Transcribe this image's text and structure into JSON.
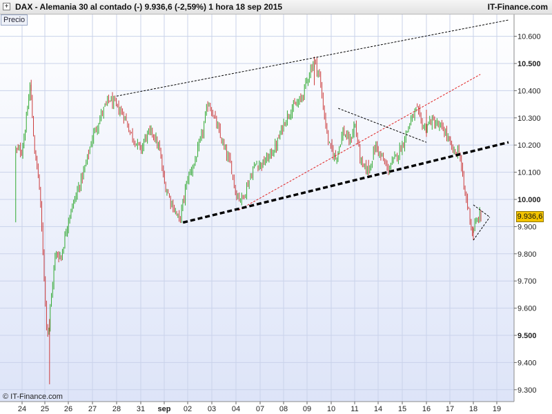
{
  "header": {
    "expand_symbol": "+",
    "title": "DAX - Alemania 30 al contado (-)     9.936,6  (-2,59%)     1 hora   18 sep 2015",
    "brand": "IT-Finance.com"
  },
  "panel_label": "Precio",
  "copyright": "© IT-Finance.com",
  "last_price_label": "9.936,6",
  "colors": {
    "up_bar": "#2fa82f",
    "down_bar": "#cc3b3b",
    "background_top": "#ffffff",
    "background_bottom": "#dde4f8",
    "grid": "#c9d2ea",
    "trendline_black": "#000000",
    "trendline_red": "#e02020",
    "last_price_box": "#f3c400"
  },
  "chart_data": {
    "type": "ohlc",
    "title": "DAX - Alemania 30 al contado (-)",
    "timeframe": "1 hora",
    "date": "18 sep 2015",
    "last_price": 9936.6,
    "change_pct": -2.59,
    "ylim": [
      9270,
      10670
    ],
    "y_ticks": [
      {
        "value": 9300,
        "label": "9.300",
        "bold": false
      },
      {
        "value": 9400,
        "label": "9.400",
        "bold": false
      },
      {
        "value": 9500,
        "label": "9.500",
        "bold": true
      },
      {
        "value": 9600,
        "label": "9.600",
        "bold": false
      },
      {
        "value": 9700,
        "label": "9.700",
        "bold": false
      },
      {
        "value": 9800,
        "label": "9.800",
        "bold": false
      },
      {
        "value": 9900,
        "label": "9.900",
        "bold": false
      },
      {
        "value": 10000,
        "label": "10.000",
        "bold": true
      },
      {
        "value": 10100,
        "label": "10.100",
        "bold": false
      },
      {
        "value": 10200,
        "label": "10.200",
        "bold": false
      },
      {
        "value": 10300,
        "label": "10.300",
        "bold": false
      },
      {
        "value": 10400,
        "label": "10.400",
        "bold": false
      },
      {
        "value": 10500,
        "label": "10.500",
        "bold": true
      },
      {
        "value": 10600,
        "label": "10.600",
        "bold": false
      }
    ],
    "x_ticks": [
      {
        "label": "24",
        "bold": false
      },
      {
        "label": "25",
        "bold": false
      },
      {
        "label": "26",
        "bold": false
      },
      {
        "label": "27",
        "bold": false
      },
      {
        "label": "28",
        "bold": false
      },
      {
        "label": "31",
        "bold": false
      },
      {
        "label": "sep",
        "bold": true
      },
      {
        "label": "02",
        "bold": false
      },
      {
        "label": "03",
        "bold": false
      },
      {
        "label": "04",
        "bold": false
      },
      {
        "label": "07",
        "bold": false
      },
      {
        "label": "08",
        "bold": false
      },
      {
        "label": "09",
        "bold": false
      },
      {
        "label": "10",
        "bold": false
      },
      {
        "label": "11",
        "bold": false
      },
      {
        "label": "14",
        "bold": false
      },
      {
        "label": "15",
        "bold": false
      },
      {
        "label": "16",
        "bold": false
      },
      {
        "label": "17",
        "bold": false
      },
      {
        "label": "18",
        "bold": false
      },
      {
        "label": "19",
        "bold": false
      }
    ],
    "grid": true,
    "close_path": [
      {
        "x": 0.0,
        "y": 10180
      },
      {
        "x": 0.2,
        "y": 10300
      },
      {
        "x": 0.35,
        "y": 10420
      },
      {
        "x": 0.55,
        "y": 10180
      },
      {
        "x": 0.75,
        "y": 10060
      },
      {
        "x": 0.95,
        "y": 9760
      },
      {
        "x": 1.05,
        "y": 9560
      },
      {
        "x": 1.15,
        "y": 9500
      },
      {
        "x": 1.25,
        "y": 9620
      },
      {
        "x": 1.45,
        "y": 9800
      },
      {
        "x": 1.7,
        "y": 9790
      },
      {
        "x": 2.0,
        "y": 9930
      },
      {
        "x": 2.3,
        "y": 10010
      },
      {
        "x": 2.7,
        "y": 10120
      },
      {
        "x": 3.0,
        "y": 10230
      },
      {
        "x": 3.4,
        "y": 10320
      },
      {
        "x": 3.7,
        "y": 10370
      },
      {
        "x": 4.0,
        "y": 10340
      },
      {
        "x": 4.3,
        "y": 10310
      },
      {
        "x": 4.6,
        "y": 10240
      },
      {
        "x": 5.0,
        "y": 10180
      },
      {
        "x": 5.2,
        "y": 10230
      },
      {
        "x": 5.5,
        "y": 10250
      },
      {
        "x": 5.8,
        "y": 10180
      },
      {
        "x": 6.0,
        "y": 10060
      },
      {
        "x": 6.3,
        "y": 9990
      },
      {
        "x": 6.5,
        "y": 9950
      },
      {
        "x": 6.65,
        "y": 9920
      },
      {
        "x": 7.0,
        "y": 10080
      },
      {
        "x": 7.3,
        "y": 10140
      },
      {
        "x": 7.6,
        "y": 10240
      },
      {
        "x": 7.85,
        "y": 10360
      },
      {
        "x": 8.1,
        "y": 10300
      },
      {
        "x": 8.5,
        "y": 10190
      },
      {
        "x": 8.8,
        "y": 10120
      },
      {
        "x": 9.0,
        "y": 10020
      },
      {
        "x": 9.25,
        "y": 10000
      },
      {
        "x": 9.5,
        "y": 10060
      },
      {
        "x": 9.8,
        "y": 10130
      },
      {
        "x": 10.1,
        "y": 10130
      },
      {
        "x": 10.4,
        "y": 10160
      },
      {
        "x": 10.7,
        "y": 10200
      },
      {
        "x": 11.0,
        "y": 10280
      },
      {
        "x": 11.3,
        "y": 10330
      },
      {
        "x": 11.7,
        "y": 10360
      },
      {
        "x": 11.9,
        "y": 10410
      },
      {
        "x": 12.1,
        "y": 10470
      },
      {
        "x": 12.3,
        "y": 10510
      },
      {
        "x": 12.5,
        "y": 10460
      },
      {
        "x": 12.7,
        "y": 10320
      },
      {
        "x": 12.9,
        "y": 10200
      },
      {
        "x": 13.2,
        "y": 10150
      },
      {
        "x": 13.5,
        "y": 10250
      },
      {
        "x": 13.8,
        "y": 10210
      },
      {
        "x": 14.0,
        "y": 10280
      },
      {
        "x": 14.3,
        "y": 10120
      },
      {
        "x": 14.6,
        "y": 10110
      },
      {
        "x": 14.9,
        "y": 10200
      },
      {
        "x": 15.1,
        "y": 10160
      },
      {
        "x": 15.4,
        "y": 10110
      },
      {
        "x": 15.7,
        "y": 10150
      },
      {
        "x": 16.0,
        "y": 10200
      },
      {
        "x": 16.3,
        "y": 10280
      },
      {
        "x": 16.6,
        "y": 10330
      },
      {
        "x": 16.9,
        "y": 10260
      },
      {
        "x": 17.2,
        "y": 10290
      },
      {
        "x": 17.5,
        "y": 10270
      },
      {
        "x": 17.8,
        "y": 10250
      },
      {
        "x": 18.0,
        "y": 10200
      },
      {
        "x": 18.2,
        "y": 10170
      },
      {
        "x": 18.4,
        "y": 10180
      },
      {
        "x": 18.6,
        "y": 10040
      },
      {
        "x": 18.8,
        "y": 9960
      },
      {
        "x": 18.95,
        "y": 9880
      },
      {
        "x": 19.1,
        "y": 9910
      },
      {
        "x": 19.25,
        "y": 9940
      },
      {
        "x": 19.35,
        "y": 9936
      }
    ],
    "spikes": [
      {
        "x": 0.4,
        "low": 10400,
        "high": 10440
      },
      {
        "x": 1.2,
        "low": 9320,
        "high": 9560
      },
      {
        "x": 12.3,
        "low": 10420,
        "high": 10525
      },
      {
        "x": 17.0,
        "low": 10230,
        "high": 10330
      },
      {
        "x": 19.0,
        "low": 9850,
        "high": 9900
      }
    ],
    "trendlines": [
      {
        "name": "upper-resistance",
        "color": "black",
        "style": "thin-dashed",
        "x1": 4.0,
        "y1": 10380,
        "x2": 20.5,
        "y2": 10660
      },
      {
        "name": "red-channel",
        "color": "red",
        "style": "thin-dashed",
        "x1": 9.1,
        "y1": 9960,
        "x2": 19.3,
        "y2": 10460
      },
      {
        "name": "main-support",
        "color": "black",
        "style": "thick-dashed",
        "x1": 6.8,
        "y1": 9915,
        "x2": 20.5,
        "y2": 10210
      },
      {
        "name": "descending-top",
        "color": "black",
        "style": "thin-dashed",
        "x1": 13.3,
        "y1": 10335,
        "x2": 17.0,
        "y2": 10210
      },
      {
        "name": "pennant-upper",
        "color": "black",
        "style": "thin-dashed",
        "x1": 19.0,
        "y1": 9980,
        "x2": 19.7,
        "y2": 9935
      },
      {
        "name": "pennant-lower",
        "color": "black",
        "style": "thin-dashed",
        "x1": 19.0,
        "y1": 9850,
        "x2": 19.7,
        "y2": 9935
      }
    ]
  }
}
